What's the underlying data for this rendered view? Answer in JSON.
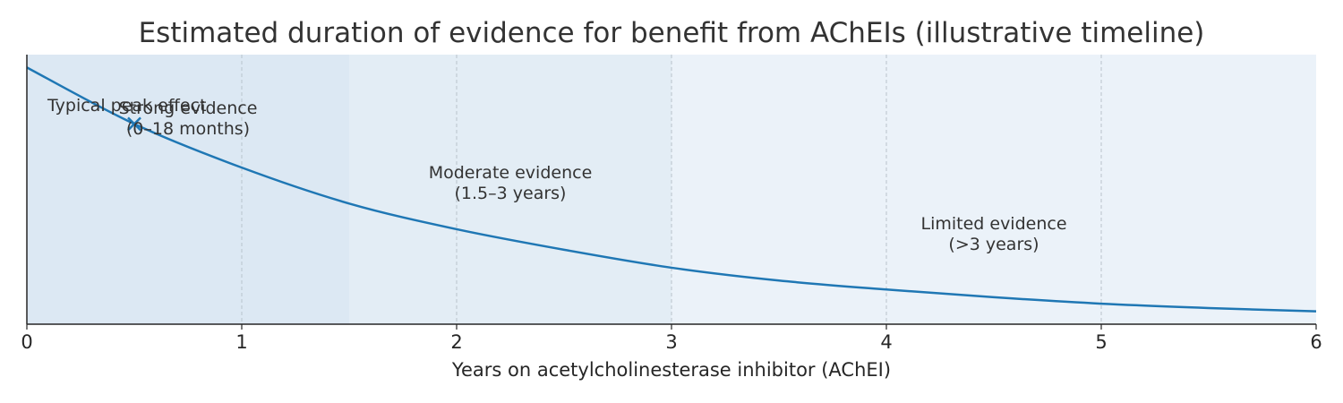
{
  "chart_data": {
    "type": "line",
    "title": "Estimated duration of evidence for benefit from AChEIs (illustrative timeline)",
    "xlabel": "Years on acetylcholinesterase inhibitor (AChEI)",
    "ylabel": "",
    "xlim": [
      0,
      6
    ],
    "ylim": [
      0,
      1.05
    ],
    "xticks": [
      "0",
      "1",
      "2",
      "3",
      "4",
      "5",
      "6"
    ],
    "yticks_visible": false,
    "grid": "x-only, dashed",
    "series": [
      {
        "color": "#1f77b4",
        "x": [
          0,
          0.5,
          1,
          1.5,
          2,
          2.5,
          3,
          3.5,
          4,
          4.5,
          5,
          5.5,
          6
        ],
        "y": [
          1.0,
          0.78,
          0.61,
          0.47,
          0.37,
          0.29,
          0.22,
          0.17,
          0.135,
          0.105,
          0.08,
          0.063,
          0.05
        ]
      }
    ],
    "regions": [
      {
        "label": "Strong evidence",
        "range_label": "(0–18 months)",
        "x_start": 0,
        "x_end": 1.5,
        "color": "#dce8f3"
      },
      {
        "label": "Moderate evidence",
        "range_label": "(1.5–3 years)",
        "x_start": 1.5,
        "x_end": 3,
        "color": "#e3edf5"
      },
      {
        "label": "Limited evidence",
        "range_label": "(>3 years)",
        "x_start": 3,
        "x_end": 6,
        "color": "#ebf2f9"
      }
    ],
    "annotations": [
      {
        "text": "Typical peak effect",
        "x": 0.5,
        "y": 0.78,
        "marker": "x"
      }
    ]
  }
}
